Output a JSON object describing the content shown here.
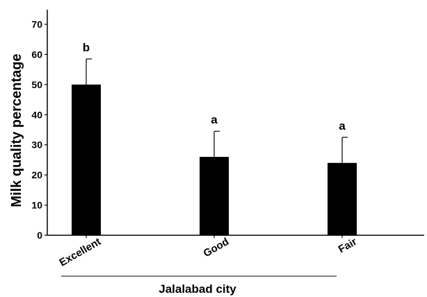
{
  "chart_data": {
    "type": "bar",
    "categories": [
      "Excellent",
      "Good",
      "Fair"
    ],
    "values": [
      50,
      26,
      24
    ],
    "error_upper": [
      58.5,
      34.5,
      32.5
    ],
    "significance_labels": [
      "b",
      "a",
      "a"
    ],
    "ylabel": "Milk quality percentage",
    "xlabel": "Jalalabad city",
    "ylim": [
      0,
      70
    ],
    "yticks": [
      0,
      10,
      20,
      30,
      40,
      50,
      60,
      70
    ],
    "bar_color": "#000000",
    "grid": false,
    "legend": false
  }
}
